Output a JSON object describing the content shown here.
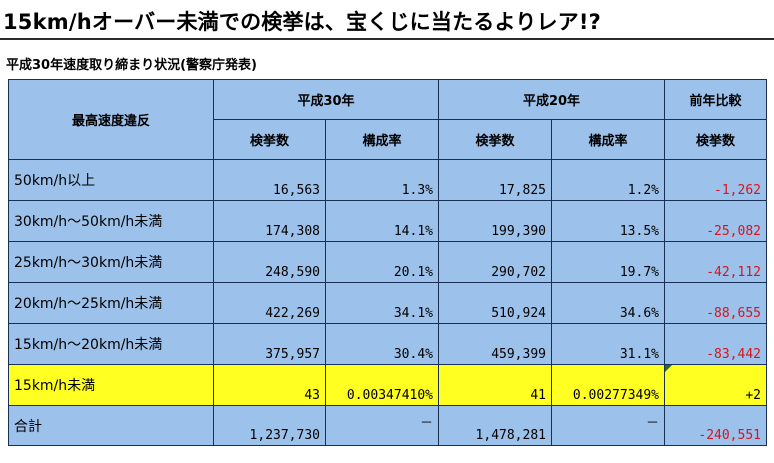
{
  "headline": "15km/hオーバー未満での検挙は、宝くじに当たるよりレア!?",
  "subtitle": "平成30年速度取り締まり状況(警察庁発表)",
  "table": {
    "col_violation": "最高速度違反",
    "group_h30": "平成30年",
    "group_h20": "平成20年",
    "group_cmp": "前年比較",
    "sub_count": "検挙数",
    "sub_ratio": "構成率",
    "rows": [
      {
        "label": "50km/h以上",
        "h30_count": "16,563",
        "h30_ratio": "1.3%",
        "h20_count": "17,825",
        "h20_ratio": "1.2%",
        "diff": "-1,262"
      },
      {
        "label": "30km/h～50km/h未満",
        "h30_count": "174,308",
        "h30_ratio": "14.1%",
        "h20_count": "199,390",
        "h20_ratio": "13.5%",
        "diff": "-25,082"
      },
      {
        "label": "25km/h～30km/h未満",
        "h30_count": "248,590",
        "h30_ratio": "20.1%",
        "h20_count": "290,702",
        "h20_ratio": "19.7%",
        "diff": "-42,112"
      },
      {
        "label": "20km/h～25km/h未満",
        "h30_count": "422,269",
        "h30_ratio": "34.1%",
        "h20_count": "510,924",
        "h20_ratio": "34.6%",
        "diff": "-88,655"
      },
      {
        "label": "15km/h～20km/h未満",
        "h30_count": "375,957",
        "h30_ratio": "30.4%",
        "h20_count": "459,399",
        "h20_ratio": "31.1%",
        "diff": "-83,442"
      },
      {
        "label": "15km/h未満",
        "h30_count": "43",
        "h30_ratio": "0.00347410%",
        "h20_count": "41",
        "h20_ratio": "0.00277349%",
        "diff": "+2"
      },
      {
        "label": "合計",
        "h30_count": "1,237,730",
        "h30_ratio": "－",
        "h20_count": "1,478,281",
        "h20_ratio": "－",
        "diff": "-240,551"
      }
    ]
  },
  "colors": {
    "header_fill": "#9cc1ea",
    "highlight_fill": "#ffff22",
    "negative_text": "#d8141c",
    "border": "#1a2f55"
  }
}
